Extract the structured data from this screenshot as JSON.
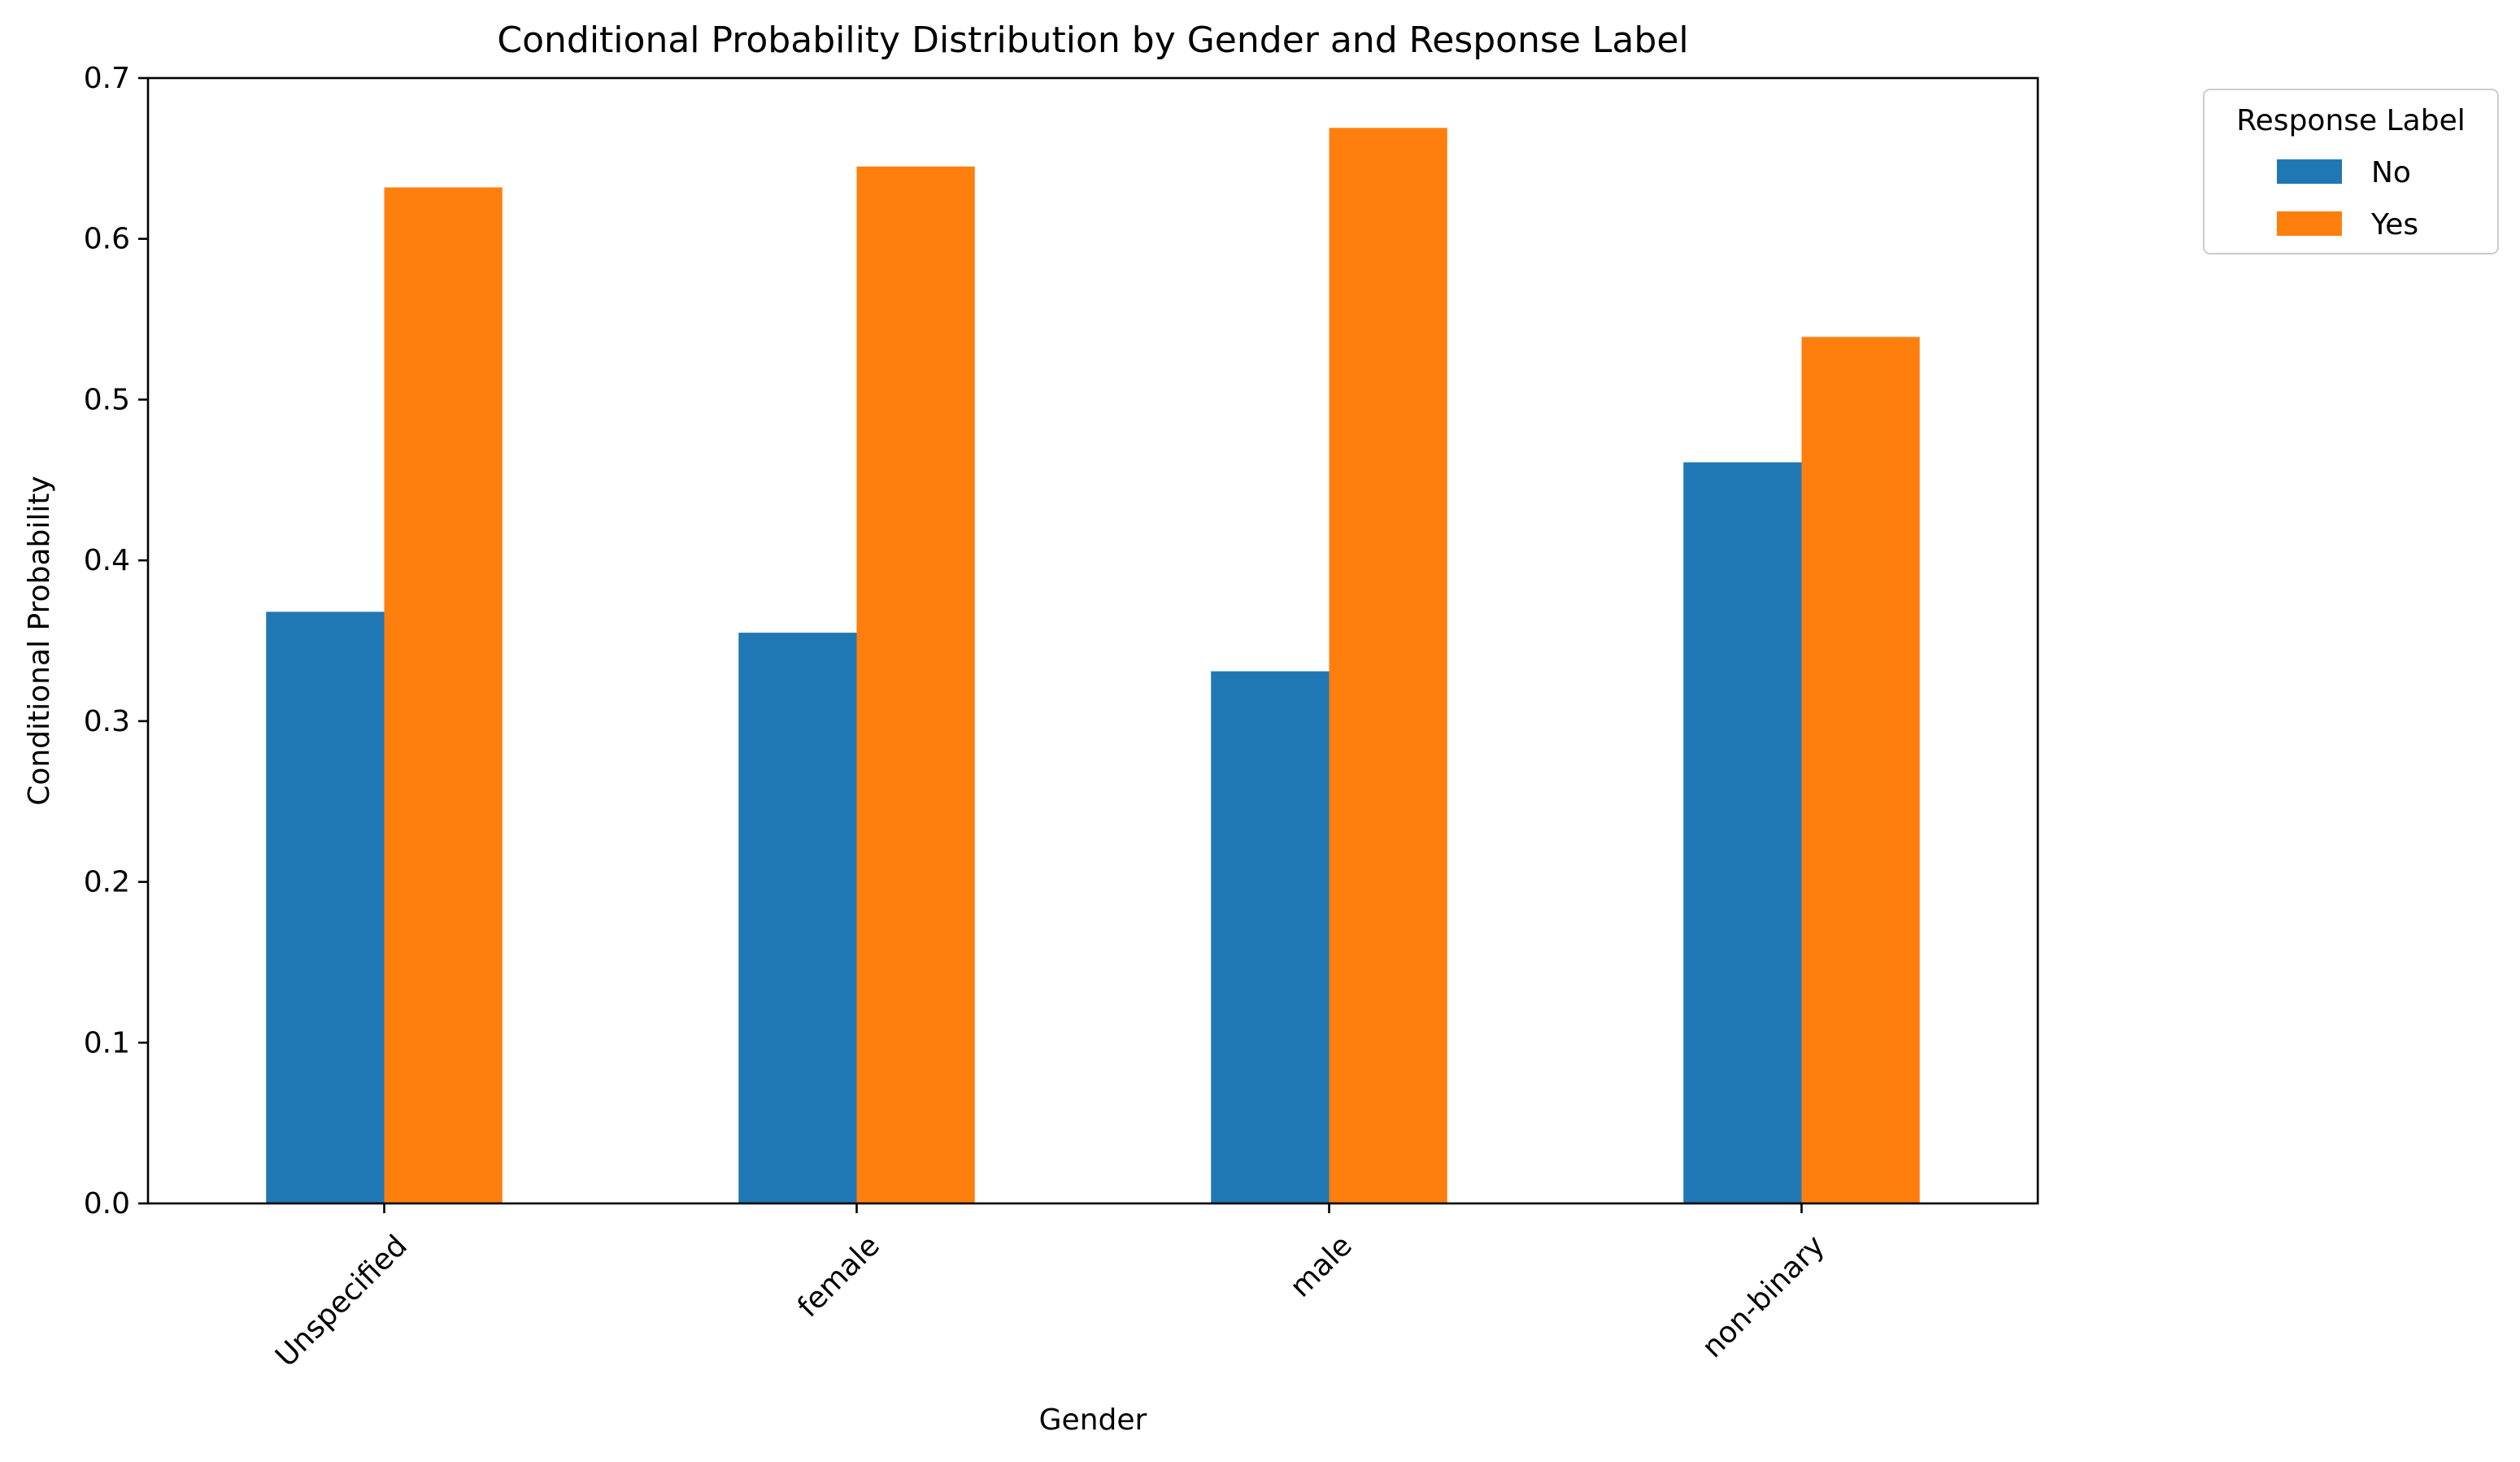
{
  "chart_data": {
    "type": "bar",
    "title": "Conditional Probability Distribution by Gender and Response Label",
    "xlabel": "Gender",
    "ylabel": "Conditional Probability",
    "categories": [
      "Unspecified",
      "female",
      "male",
      "non-binary"
    ],
    "series": [
      {
        "name": "No",
        "color": "#1f77b4",
        "values": [
          0.368,
          0.355,
          0.331,
          0.461
        ]
      },
      {
        "name": "Yes",
        "color": "#ff7f0e",
        "values": [
          0.632,
          0.645,
          0.669,
          0.539
        ]
      }
    ],
    "ylim": [
      0,
      0.7
    ],
    "yticks": [
      "0.0",
      "0.1",
      "0.2",
      "0.3",
      "0.4",
      "0.5",
      "0.6",
      "0.7"
    ],
    "legend": {
      "title": "Response Label",
      "placement": "outside-upper-right"
    },
    "grid": false
  }
}
